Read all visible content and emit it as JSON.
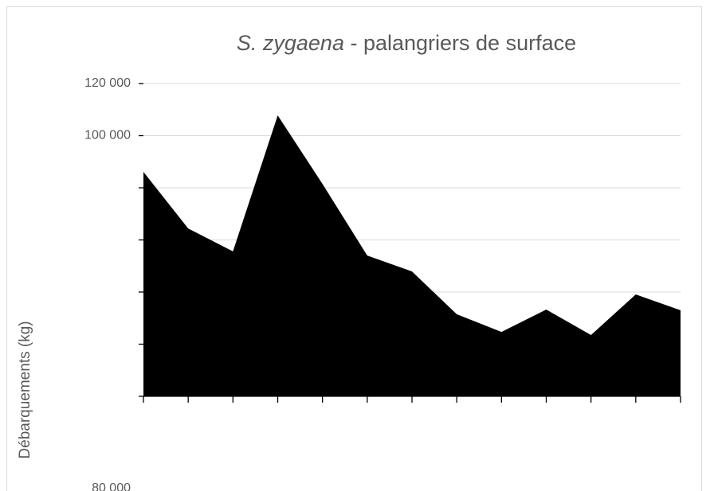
{
  "chart_data": {
    "type": "area",
    "title": {
      "species": "S. zygaena",
      "text": " - palangriers de surface"
    },
    "ylabel": "Débarquements (kg)",
    "categories": [
      null,
      null,
      null,
      null,
      null,
      null,
      null,
      null,
      null,
      null,
      null,
      null,
      null
    ],
    "values": [
      86100,
      64400,
      55600,
      107800,
      81500,
      54000,
      47900,
      31500,
      24700,
      33300,
      23500,
      39100,
      33000
    ],
    "color": "#000000",
    "ylim": [
      0,
      120000
    ],
    "yticks": [
      {
        "value": 0,
        "label": null
      },
      {
        "value": 20000,
        "label": null
      },
      {
        "value": 40000,
        "label": null
      },
      {
        "value": 60000,
        "label": null
      },
      {
        "value": 80000,
        "label": "80 000"
      },
      {
        "value": 100000,
        "label": "100 000"
      },
      {
        "value": 120000,
        "label": "120 000"
      }
    ],
    "grid": true
  }
}
